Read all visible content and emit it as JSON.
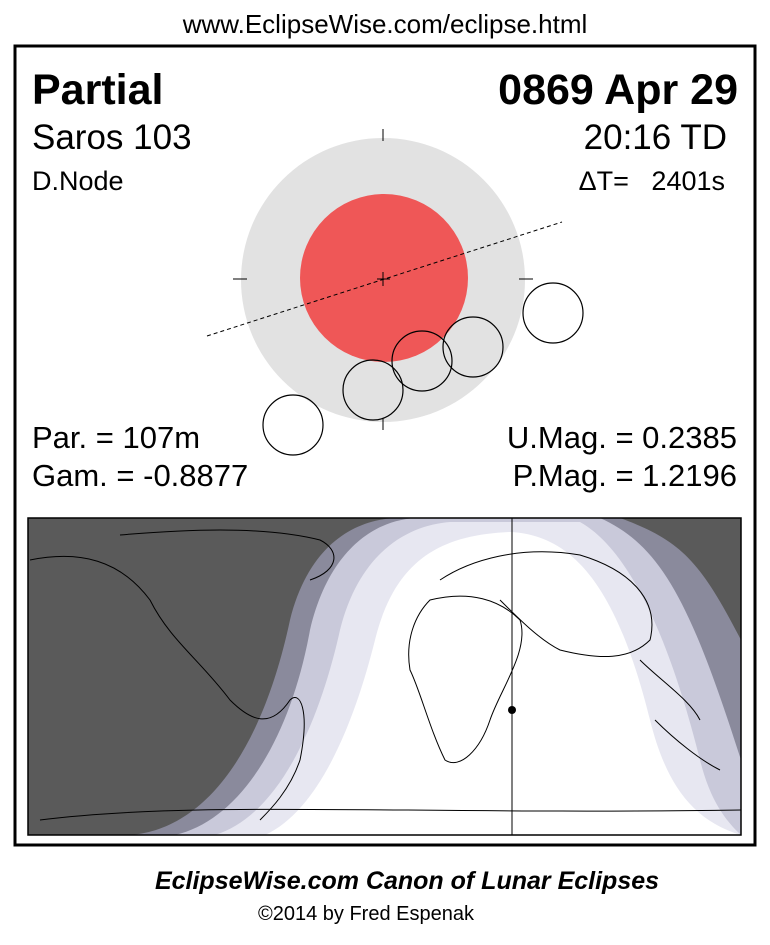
{
  "header": {
    "url": "www.EclipseWise.com/eclipse.html"
  },
  "eclipse": {
    "type": "Partial",
    "date": "0869 Apr 29",
    "saros": "Saros 103",
    "time": "20:16 TD",
    "node": "D.Node",
    "delta_t": "ΔT=   2401s",
    "duration": "Par. = 107m",
    "gamma": "Gam. = -0.8877",
    "umbral_magnitude": "U.Mag. = 0.2385",
    "penumbral_magnitude": "P.Mag. = 1.2196"
  },
  "footer": {
    "title": "EclipseWise.com Canon of Lunar Eclipses",
    "credit": "©2014 by Fred Espenak"
  }
}
